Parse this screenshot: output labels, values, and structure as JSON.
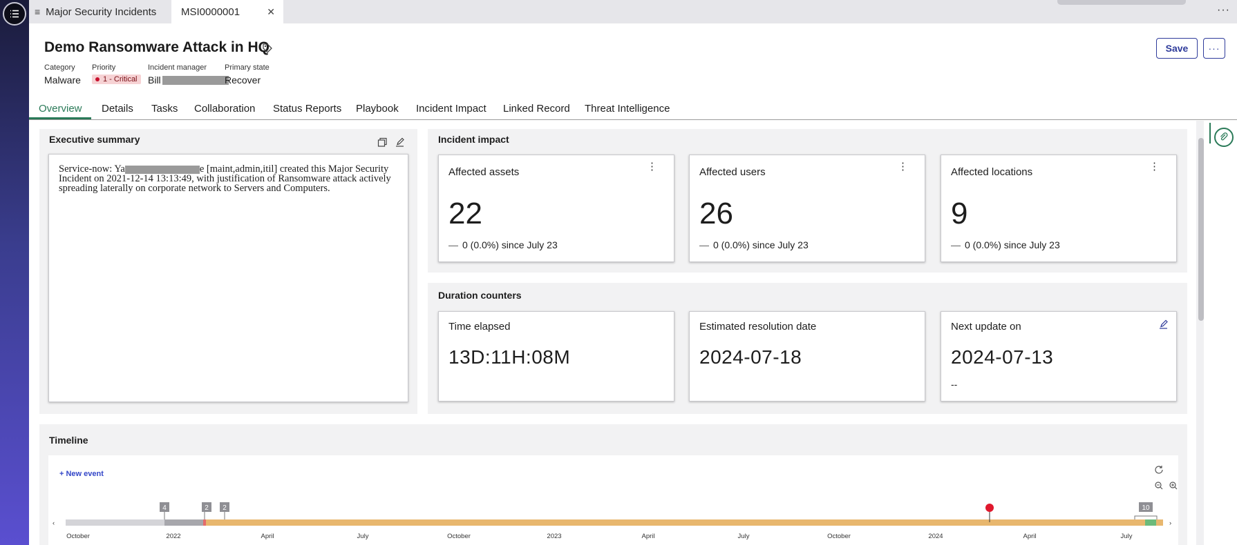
{
  "tabs": {
    "list_tab": "Major Security Incidents",
    "record_tab": "MSI0000001"
  },
  "header": {
    "title": "Demo Ransomware Attack in HQ",
    "save_label": "Save",
    "more_label": "···",
    "fields": {
      "category_label": "Category",
      "category_value": "Malware",
      "priority_label": "Priority",
      "priority_value": "1 - Critical",
      "manager_label": "Incident manager",
      "manager_value": "Bill",
      "state_label": "Primary state",
      "state_value": "Recover"
    }
  },
  "nav_tabs": [
    "Overview",
    "Details",
    "Tasks",
    "Collaboration",
    "Status Reports",
    "Playbook",
    "Incident Impact",
    "Linked Record",
    "Threat Intelligence"
  ],
  "executive_summary": {
    "title": "Executive summary",
    "text_prefix": "Service-now: Ya",
    "text_suffix": "e [maint,admin,itil] created this Major Security Incident on 2021-12-14 13:13:49, with justification of Ransomware attack actively spreading laterally on corporate network to Servers and Computers."
  },
  "incident_impact": {
    "title": "Incident impact",
    "cards": [
      {
        "label": "Affected assets",
        "value": "22",
        "change": "0 (0.0%) since July 23"
      },
      {
        "label": "Affected users",
        "value": "26",
        "change": "0 (0.0%) since July 23"
      },
      {
        "label": "Affected locations",
        "value": "9",
        "change": "0 (0.0%) since July 23"
      }
    ]
  },
  "duration_counters": {
    "title": "Duration counters",
    "cards": [
      {
        "label": "Time elapsed",
        "value": "13D:11H:08M",
        "sub": ""
      },
      {
        "label": "Estimated resolution date",
        "value": "2024-07-18",
        "sub": ""
      },
      {
        "label": "Next update on",
        "value": "2024-07-13",
        "sub": "--"
      }
    ]
  },
  "timeline": {
    "title": "Timeline",
    "new_event_label": "+ New event",
    "axis_labels": [
      "October",
      "2022",
      "April",
      "July",
      "October",
      "2023",
      "April",
      "July",
      "October",
      "2024",
      "April",
      "July"
    ],
    "cluster_badges": [
      "4",
      "2",
      "2",
      "10"
    ]
  },
  "colors": {
    "accent_green": "#2a7a58",
    "link_blue": "#3346c8",
    "critical_red": "#c8102e",
    "timeline_orange": "#e8b76e",
    "timeline_green": "#6cba7a"
  }
}
